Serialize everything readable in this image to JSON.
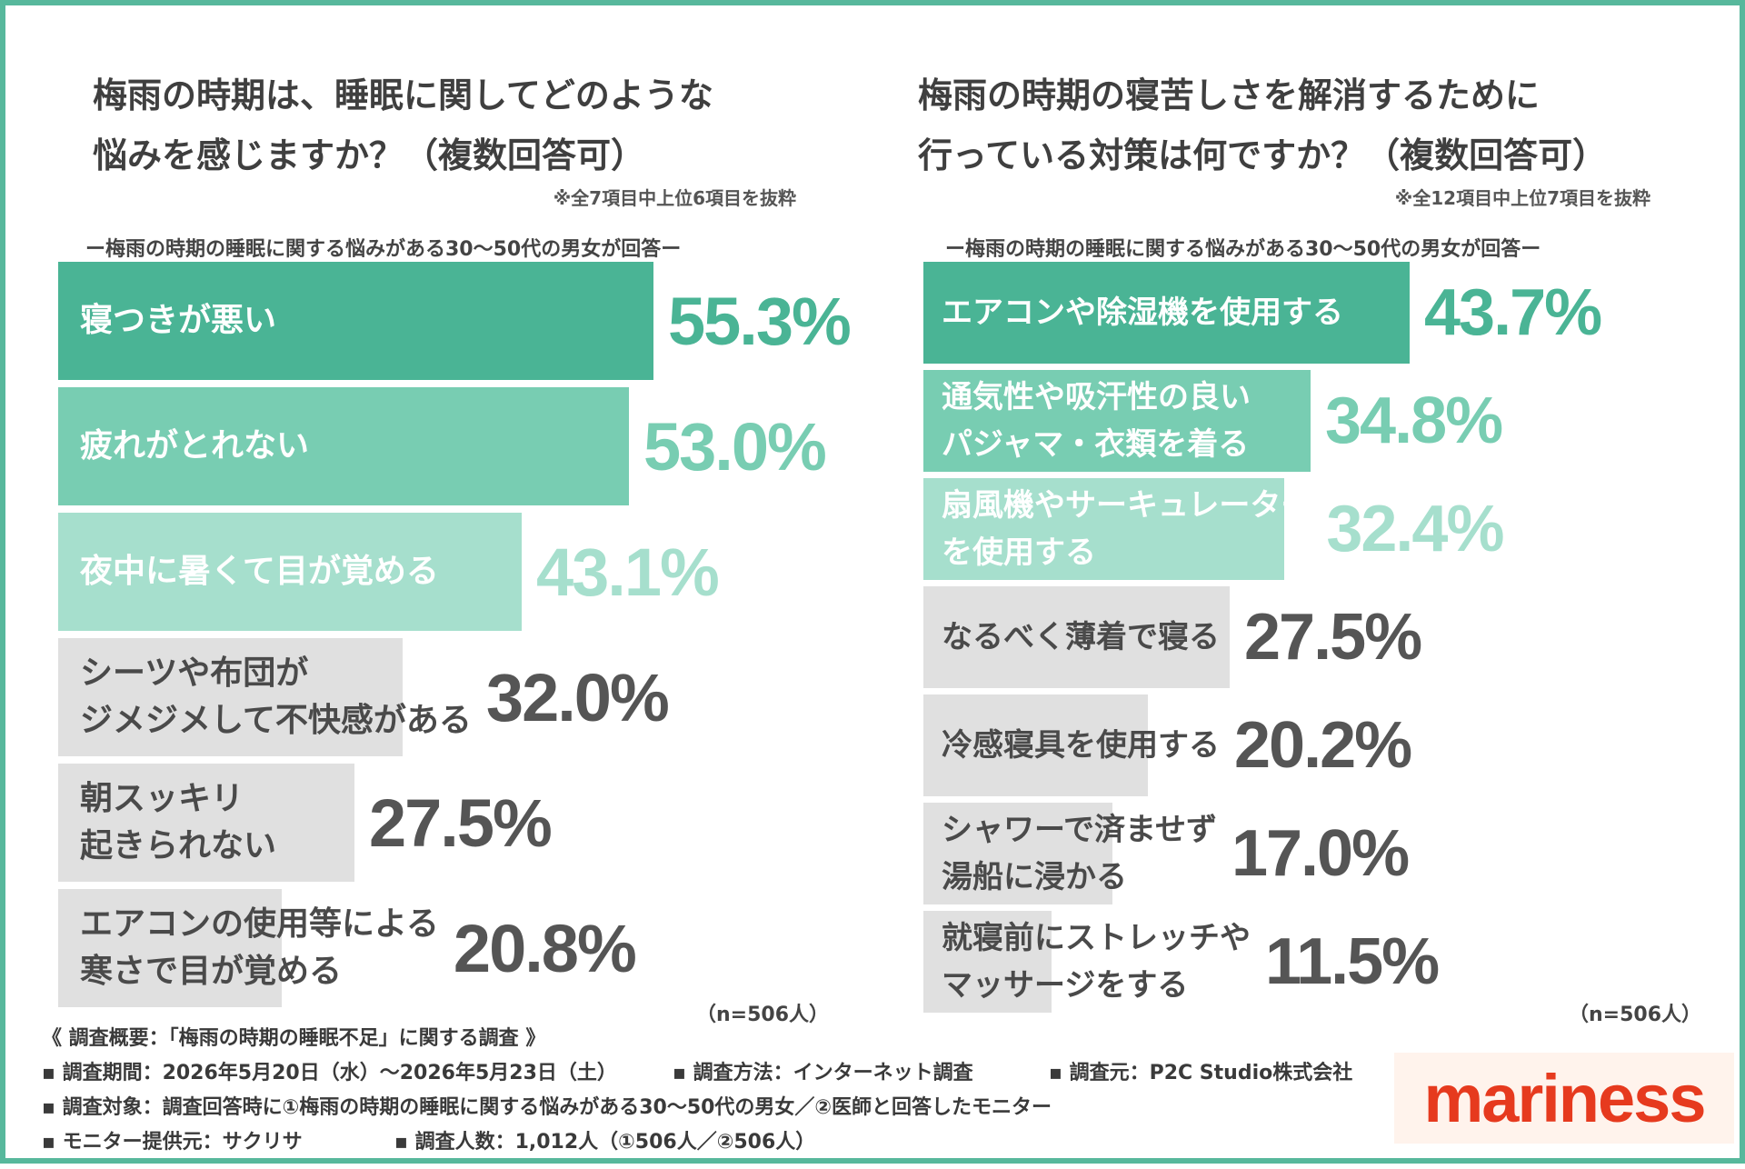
{
  "colors": {
    "border": "#57b89c",
    "bar_level_1": "#4ab495",
    "bar_level_2": "#78cdb2",
    "bar_level_3": "#a6dfcd",
    "bar_grey": "#e0e0e0",
    "value_grey": "#555555",
    "logo_red": "#e63a1e"
  },
  "left": {
    "title_line1": "梅雨の時期は、睡眠に関してどのような",
    "title_line2": "悩みを感じますか？（複数回答可）",
    "note": "※全7項目中上位6項目を抜粋",
    "subtitle": "ー梅雨の時期の睡眠に関する悩みがある30〜50代の男女が回答ー",
    "n_label": "（n=506人）"
  },
  "right": {
    "title_line1": "梅雨の時期の寝苦しさを解消するために",
    "title_line2": "行っている対策は何ですか？（複数回答可）",
    "note": "※全12項目中上位7項目を抜粋",
    "subtitle": "ー梅雨の時期の睡眠に関する悩みがある30〜50代の男女が回答ー",
    "n_label": "（n=506人）"
  },
  "chart_data": [
    {
      "type": "bar",
      "orientation": "horizontal",
      "categories": [
        "寝つきが悪い",
        "疲れがとれない",
        "夜中に暑くて目が覚める",
        "シーツや布団が\nジメジメして不快感がある",
        "朝スッキリ\n起きられない",
        "エアコンの使用等による\n寒さで目が覚める"
      ],
      "values": [
        55.3,
        53.0,
        43.1,
        32.0,
        27.5,
        20.8
      ],
      "value_labels": [
        "55.3%",
        "53.0%",
        "43.1%",
        "32.0%",
        "27.5%",
        "20.8%"
      ],
      "highlight_levels": [
        1,
        2,
        3,
        0,
        0,
        0
      ],
      "xlim": [
        0,
        100
      ]
    },
    {
      "type": "bar",
      "orientation": "horizontal",
      "categories": [
        "エアコンや除湿機を使用する",
        "通気性や吸汗性の良い\nパジャマ・衣類を着る",
        "扇風機やサーキュレーター\nを使用する",
        "なるべく薄着で寝る",
        "冷感寝具を使用する",
        "シャワーで済ませず\n湯船に浸かる",
        "就寝前にストレッチや\nマッサージをする"
      ],
      "values": [
        43.7,
        34.8,
        32.4,
        27.5,
        20.2,
        17.0,
        11.5
      ],
      "value_labels": [
        "43.7%",
        "34.8%",
        "32.4%",
        "27.5%",
        "20.2%",
        "17.0%",
        "11.5%"
      ],
      "highlight_levels": [
        1,
        2,
        3,
        0,
        0,
        0,
        0
      ],
      "xlim": [
        0,
        100
      ]
    }
  ],
  "survey": {
    "heading": "《 調査概要：「梅雨の時期の睡眠不足」に関する調査 》",
    "period": "▪ 調査期間：2026年5月20日（水）〜2026年5月23日（土）",
    "method": "▪ 調査方法：インターネット調査",
    "source": "▪ 調査元：P2C Studio株式会社",
    "target": "▪ 調査対象：調査回答時に①梅雨の時期の睡眠に関する悩みがある30〜50代の男女／②医師と回答したモニター",
    "provider": "▪ モニター提供元：サクリサ",
    "count": "▪ 調査人数：1,012人（①506人／②506人）"
  },
  "logo": {
    "text": "mariness"
  }
}
